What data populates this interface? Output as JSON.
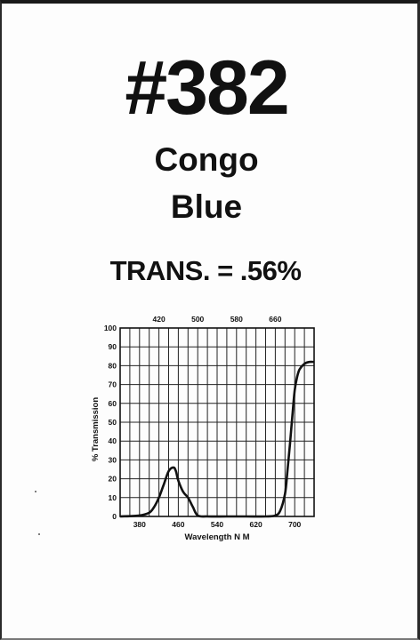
{
  "card": {
    "number": "#382",
    "name_line1": "Congo",
    "name_line2": "Blue",
    "transmission": "TRANS. = .56%"
  },
  "chart_data": {
    "type": "line",
    "title": "",
    "xlabel": "Wavelength N M",
    "ylabel": "% Transmission",
    "xlim": [
      340,
      740
    ],
    "ylim": [
      0,
      100
    ],
    "x_ticks_bottom": [
      "380",
      "460",
      "540",
      "620",
      "700"
    ],
    "x_ticks_top": [
      "420",
      "500",
      "580",
      "660"
    ],
    "y_ticks": [
      "0",
      "10",
      "20",
      "30",
      "40",
      "50",
      "60",
      "70",
      "80",
      "90",
      "100"
    ],
    "grid": true,
    "colors": {
      "line": "#111111",
      "grid": "#222222"
    },
    "series": [
      {
        "x": [
          340,
          380,
          400,
          410,
          420,
          430,
          440,
          450,
          455,
          460,
          470,
          480,
          490,
          500,
          520,
          560,
          600,
          640,
          660,
          670,
          680,
          685,
          690,
          695,
          700,
          705,
          710,
          720,
          730,
          740
        ],
        "y": [
          0,
          0.5,
          2,
          5,
          10,
          17,
          24,
          26,
          24,
          19,
          13,
          10,
          5,
          0.5,
          0,
          0,
          0,
          0,
          0.5,
          3,
          12,
          24,
          38,
          53,
          67,
          74,
          78,
          81,
          82,
          82
        ]
      }
    ]
  }
}
